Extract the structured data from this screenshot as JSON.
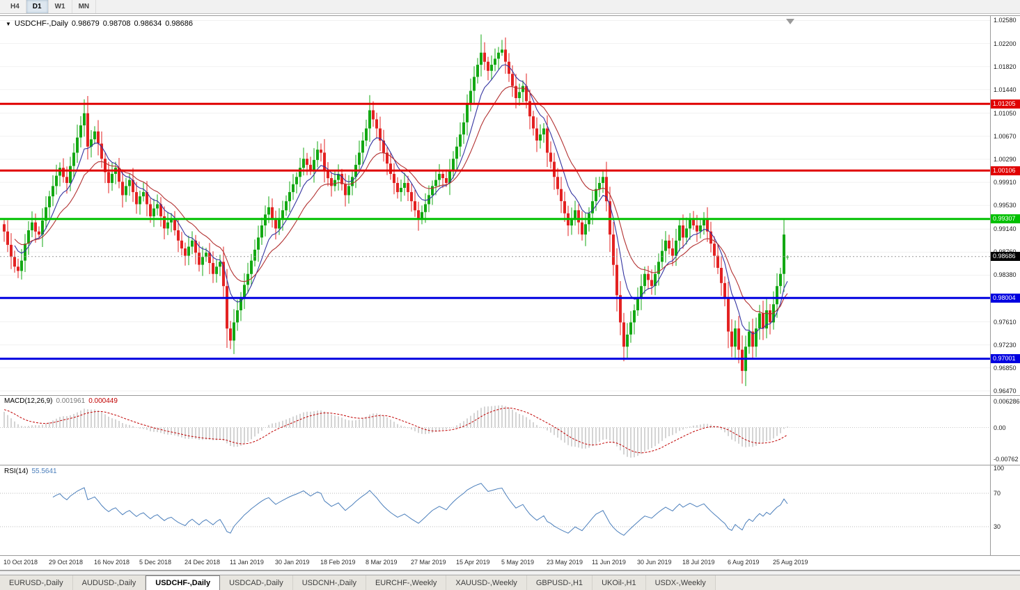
{
  "toolbar": {
    "buttons": [
      {
        "label": "H4",
        "active": false
      },
      {
        "label": "D1",
        "active": true
      },
      {
        "label": "W1",
        "active": false
      },
      {
        "label": "MN",
        "active": false
      }
    ]
  },
  "chart_data": {
    "type": "candlestick",
    "symbol": "USDCHF",
    "timeframe": "Daily",
    "title": {
      "symbol": "USDCHF-,Daily",
      "open": "0.98679",
      "high": "0.98708",
      "low": "0.98634",
      "close": "0.98686"
    },
    "colors": {
      "bull": "#13a813",
      "bear": "#e32222",
      "ma_fast": "#3333a0",
      "ma_slow": "#b23030",
      "macd_hist": "#a8a8a8",
      "macd_signal": "#c00000",
      "rsi": "#4a7ebb",
      "grid": "#f1f1f1",
      "level_red": "#e00000",
      "level_green": "#00c000",
      "level_blue": "#0000e0"
    },
    "price_y_range": [
      0.964,
      1.0262
    ],
    "price_ticks": [
      "1.02580",
      "1.02200",
      "1.01820",
      "1.01440",
      "1.01050",
      "1.00670",
      "1.00290",
      "0.99910",
      "0.99530",
      "0.99140",
      "0.98760",
      "0.98380",
      "0.98000",
      "0.97610",
      "0.97230",
      "0.96850",
      "0.96470"
    ],
    "x_labels": [
      "10 Oct 2018",
      "29 Oct 2018",
      "16 Nov 2018",
      "5 Dec 2018",
      "24 Dec 2018",
      "11 Jan 2019",
      "30 Jan 2019",
      "18 Feb 2019",
      "8 Mar 2019",
      "27 Mar 2019",
      "15 Apr 2019",
      "5 May 2019",
      "23 May 2019",
      "11 Jun 2019",
      "30 Jun 2019",
      "18 Jul 2019",
      "6 Aug 2019",
      "25 Aug 2019"
    ],
    "x_label_step": 13,
    "closes": [
      0.991,
      0.9888,
      0.9868,
      0.9852,
      0.9845,
      0.9862,
      0.989,
      0.9912,
      0.9925,
      0.991,
      0.9905,
      0.9928,
      0.995,
      0.9968,
      0.9985,
      1.0002,
      1.0015,
      1.0,
      0.999,
      1.0018,
      1.004,
      1.0065,
      1.0085,
      1.0105,
      1.005,
      1.0062,
      1.0075,
      1.0055,
      1.003,
      1.0008,
      0.999,
      1.0005,
      1.0015,
      0.9992,
      0.997,
      0.9985,
      0.9995,
      0.9975,
      0.9955,
      0.9968,
      0.9975,
      0.9955,
      0.9935,
      0.9948,
      0.9955,
      0.9935,
      0.9915,
      0.9925,
      0.993,
      0.9912,
      0.9895,
      0.9882,
      0.987,
      0.9885,
      0.9895,
      0.9875,
      0.9855,
      0.9868,
      0.9875,
      0.9858,
      0.984,
      0.9852,
      0.986,
      0.982,
      0.975,
      0.973,
      0.976,
      0.978,
      0.98,
      0.9822,
      0.984,
      0.9862,
      0.988,
      0.99,
      0.992,
      0.9938,
      0.995,
      0.9932,
      0.9915,
      0.993,
      0.9945,
      0.996,
      0.9975,
      0.9988,
      1.0,
      1.0015,
      1.003,
      1.002,
      1.001,
      1.0028,
      1.0045,
      1.004,
      1.001,
      0.9998,
      0.9985,
      0.9995,
      1.0005,
      0.9988,
      0.997,
      0.9985,
      1.0,
      1.002,
      1.004,
      1.006,
      1.008,
      1.011,
      1.0095,
      1.008,
      1.006,
      1.004,
      1.0022,
      1.0005,
      0.999,
      0.9975,
      0.9982,
      0.999,
      0.9975,
      0.996,
      0.9945,
      0.993,
      0.9942,
      0.9955,
      0.997,
      0.9985,
      0.9995,
      1.0005,
      0.9998,
      0.999,
      1.001,
      1.003,
      1.005,
      1.007,
      1.009,
      1.012,
      1.0142,
      1.0165,
      1.0185,
      1.0205,
      1.019,
      1.0175,
      1.0185,
      1.0195,
      1.0205,
      1.021,
      1.019,
      1.017,
      1.015,
      1.013,
      1.014,
      1.015,
      1.0125,
      1.01,
      1.008,
      1.006,
      1.007,
      1.008,
      1.004,
      1.0025,
      1.0,
      0.998,
      0.996,
      0.994,
      0.992,
      0.9932,
      0.9945,
      0.9925,
      0.9905,
      0.9922,
      0.994,
      0.996,
      0.998,
      0.999,
      1.0,
      0.996,
      0.9905,
      0.9855,
      0.9805,
      0.976,
      0.972,
      0.974,
      0.976,
      0.978,
      0.98,
      0.982,
      0.984,
      0.983,
      0.982,
      0.984,
      0.986,
      0.9878,
      0.9895,
      0.9882,
      0.987,
      0.9895,
      0.992,
      0.99,
      0.9915,
      0.993,
      0.992,
      0.991,
      0.992,
      0.993,
      0.991,
      0.989,
      0.987,
      0.985,
      0.9825,
      0.98,
      0.9745,
      0.972,
      0.975,
      0.9715,
      0.968,
      0.972,
      0.9745,
      0.972,
      0.975,
      0.9775,
      0.975,
      0.978,
      0.976,
      0.979,
      0.982,
      0.984,
      0.9905,
      0.98686
    ],
    "wick_overrides": {
      "4": {
        "l": 0.9833
      },
      "23": {
        "h": 1.0128
      },
      "64": {
        "l": 0.9718
      },
      "65": {
        "l": 0.9716
      },
      "105": {
        "h": 1.0135
      },
      "137": {
        "h": 1.0235
      },
      "143": {
        "h": 1.0226
      },
      "172": {
        "h": 1.0012
      },
      "178": {
        "l": 0.9696
      },
      "212": {
        "l": 0.9659
      },
      "224": {
        "h": 0.9931
      },
      "225": {
        "o": 0.98679,
        "h": 0.98708,
        "l": 0.98634
      }
    },
    "levels": [
      {
        "value": 1.01205,
        "label": "1.01205",
        "color": "#e00000",
        "width": 3,
        "type": "resistance"
      },
      {
        "value": 1.00106,
        "label": "1.00106",
        "color": "#e00000",
        "width": 3,
        "type": "resistance"
      },
      {
        "value": 0.99307,
        "label": "0.99307",
        "color": "#00c000",
        "width": 3,
        "type": "pivot"
      },
      {
        "value": 0.98004,
        "label": "0.98004",
        "color": "#0000e0",
        "width": 3,
        "type": "support"
      },
      {
        "value": 0.97001,
        "label": "0.97001",
        "color": "#0000e0",
        "width": 3,
        "type": "support"
      }
    ],
    "current_price": {
      "value": 0.98686,
      "label": "0.98686"
    },
    "overlays": [
      {
        "name": "ma-fast",
        "period": 8
      },
      {
        "name": "ma-slow",
        "period": 17
      }
    ],
    "macd": {
      "label_name": "MACD(12,26,9)",
      "label_main": "0.001961",
      "label_signal": "0.000449",
      "y_range": [
        -0.0085,
        0.007
      ],
      "y_ticks": [
        {
          "value": 0.006286,
          "label": "0.006286"
        },
        {
          "value": 0,
          "label": "0.00"
        },
        {
          "value": -0.00762,
          "label": "-0.00762"
        }
      ]
    },
    "rsi": {
      "label_name": "RSI(14)",
      "label_value": "55.5641",
      "period": 14,
      "levels": [
        70,
        30
      ],
      "y_ticks": [
        {
          "value": 100,
          "label": "100"
        },
        {
          "value": 70,
          "label": "70"
        },
        {
          "value": 30,
          "label": "30"
        }
      ]
    }
  },
  "window_tabs": [
    {
      "label": "EURUSD-,Daily",
      "active": false
    },
    {
      "label": "AUDUSD-,Daily",
      "active": false
    },
    {
      "label": "USDCHF-,Daily",
      "active": true
    },
    {
      "label": "USDCAD-,Daily",
      "active": false
    },
    {
      "label": "USDCNH-,Daily",
      "active": false
    },
    {
      "label": "EURCHF-,Weekly",
      "active": false
    },
    {
      "label": "XAUUSD-,Weekly",
      "active": false
    },
    {
      "label": "GBPUSD-,H1",
      "active": false
    },
    {
      "label": "UKOil-,H1",
      "active": false
    },
    {
      "label": "USDX-,Weekly",
      "active": false
    }
  ]
}
